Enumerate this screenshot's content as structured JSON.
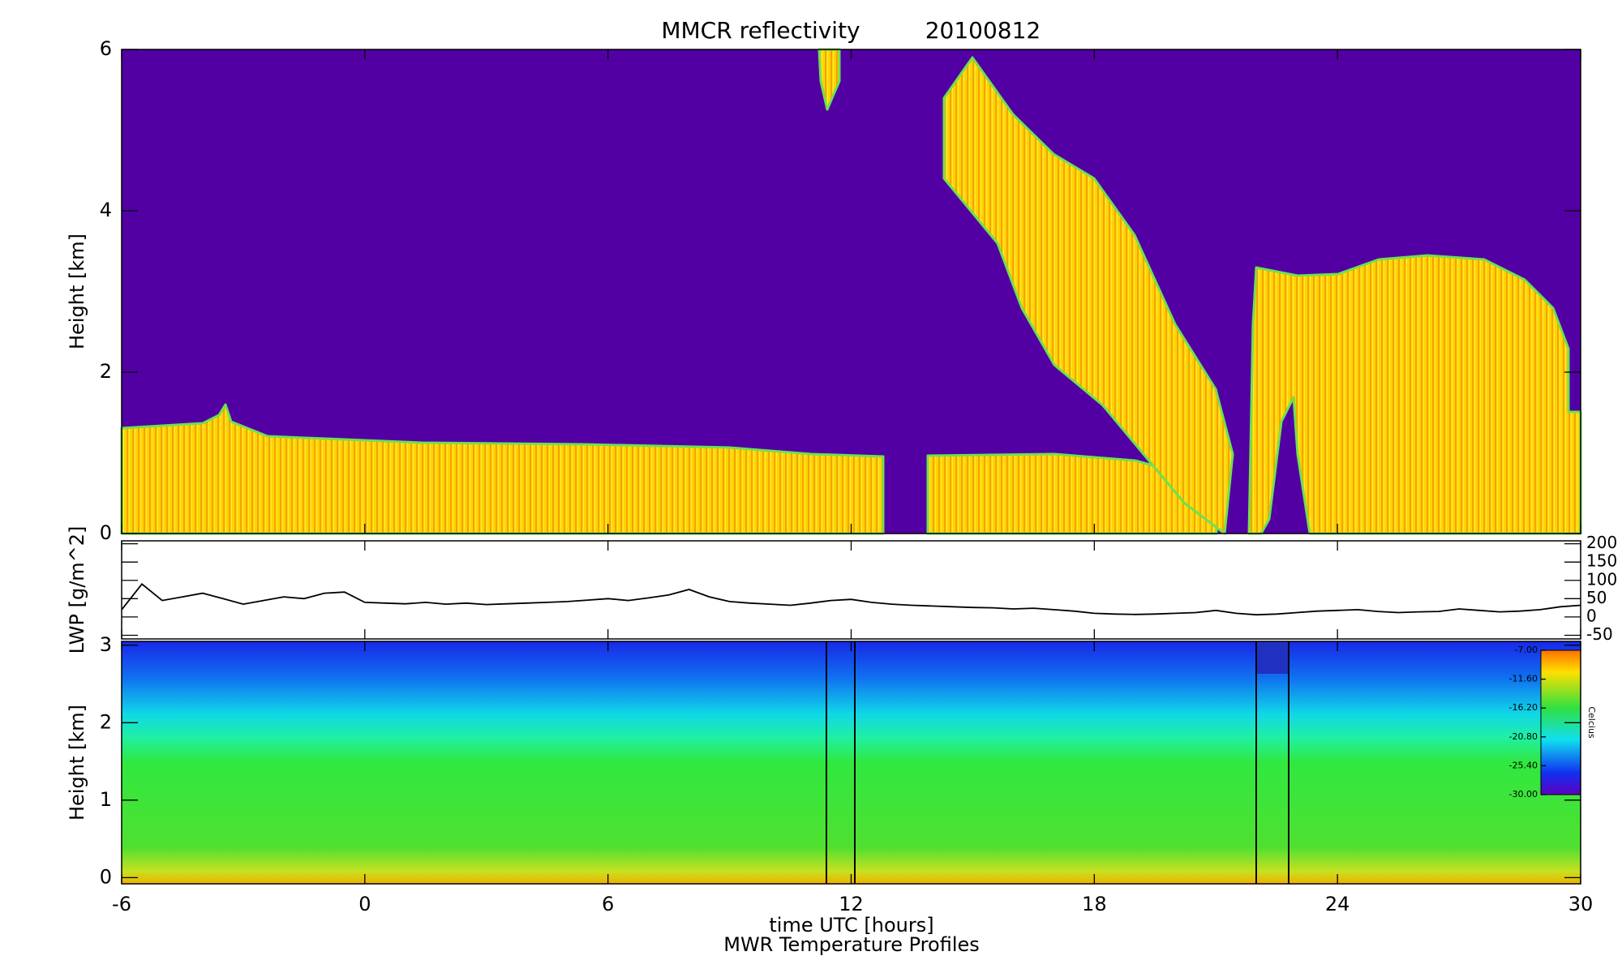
{
  "chart_data": [
    {
      "type": "heatmap",
      "title": "MMCR reflectivity",
      "date": "20100812",
      "ylabel": "Height [km]",
      "ylim": [
        0,
        6
      ],
      "yticks": [
        0,
        2,
        4,
        6
      ]
    },
    {
      "type": "line",
      "ylabel": "LWP [g/m^2]",
      "color": "#000000",
      "axis": "y2",
      "x": [
        -6,
        -5.5,
        -5,
        -4.5,
        -4,
        -3.5,
        -3,
        -2.5,
        -2,
        -1.5,
        -1,
        -0.5,
        0,
        0.5,
        1,
        1.5,
        2,
        2.5,
        3,
        3.5,
        4,
        4.5,
        5,
        5.5,
        6,
        6.5,
        7,
        7.5,
        8,
        8.5,
        9,
        9.5,
        10,
        10.5,
        11,
        11.5,
        12,
        12.5,
        13,
        13.5,
        14,
        14.5,
        15,
        15.5,
        16,
        16.5,
        17,
        17.5,
        18,
        18.5,
        19,
        19.5,
        20,
        20.5,
        21,
        21.5,
        22,
        22.5,
        23,
        23.5,
        24,
        24.5,
        25,
        25.5,
        26,
        26.5,
        27,
        27.5,
        28,
        28.5,
        29,
        29.5,
        30
      ],
      "values": [
        20,
        90,
        45,
        55,
        65,
        50,
        35,
        45,
        55,
        50,
        65,
        68,
        40,
        38,
        36,
        40,
        35,
        38,
        34,
        36,
        38,
        40,
        42,
        46,
        50,
        45,
        52,
        60,
        75,
        55,
        42,
        38,
        35,
        32,
        38,
        45,
        48,
        40,
        35,
        32,
        30,
        28,
        26,
        25,
        22,
        24,
        20,
        16,
        10,
        8,
        7,
        8,
        10,
        12,
        18,
        10,
        6,
        8,
        12,
        16,
        18,
        20,
        15,
        12,
        14,
        15,
        22,
        18,
        14,
        16,
        20,
        28,
        32
      ],
      "y2lim": [
        -60,
        208
      ],
      "y2ticks": [
        -50,
        0,
        50,
        100,
        150,
        200
      ]
    },
    {
      "type": "heatmap",
      "ylabel": "Height [km]",
      "xlabel": "time UTC [hours]",
      "subtitle": "MWR Temperature Profiles",
      "ylim": [
        -0.08,
        3.05
      ],
      "yticks": [
        0,
        1,
        2,
        3
      ],
      "xlim": [
        -6,
        30
      ],
      "xticks": [
        -6,
        0,
        6,
        12,
        18,
        24,
        30
      ],
      "colorbar": {
        "label": "Celcius",
        "lim": [
          -30,
          -7
        ],
        "ticks": [
          {
            "value": -7,
            "label": "-7.00"
          },
          {
            "value": -11.6,
            "label": "-11.60"
          },
          {
            "value": -16.2,
            "label": "-16.20"
          },
          {
            "value": -20.8,
            "label": "-20.80"
          },
          {
            "value": -25.4,
            "label": "-25.40"
          },
          {
            "value": -30,
            "label": "-30.00"
          }
        ]
      }
    }
  ]
}
